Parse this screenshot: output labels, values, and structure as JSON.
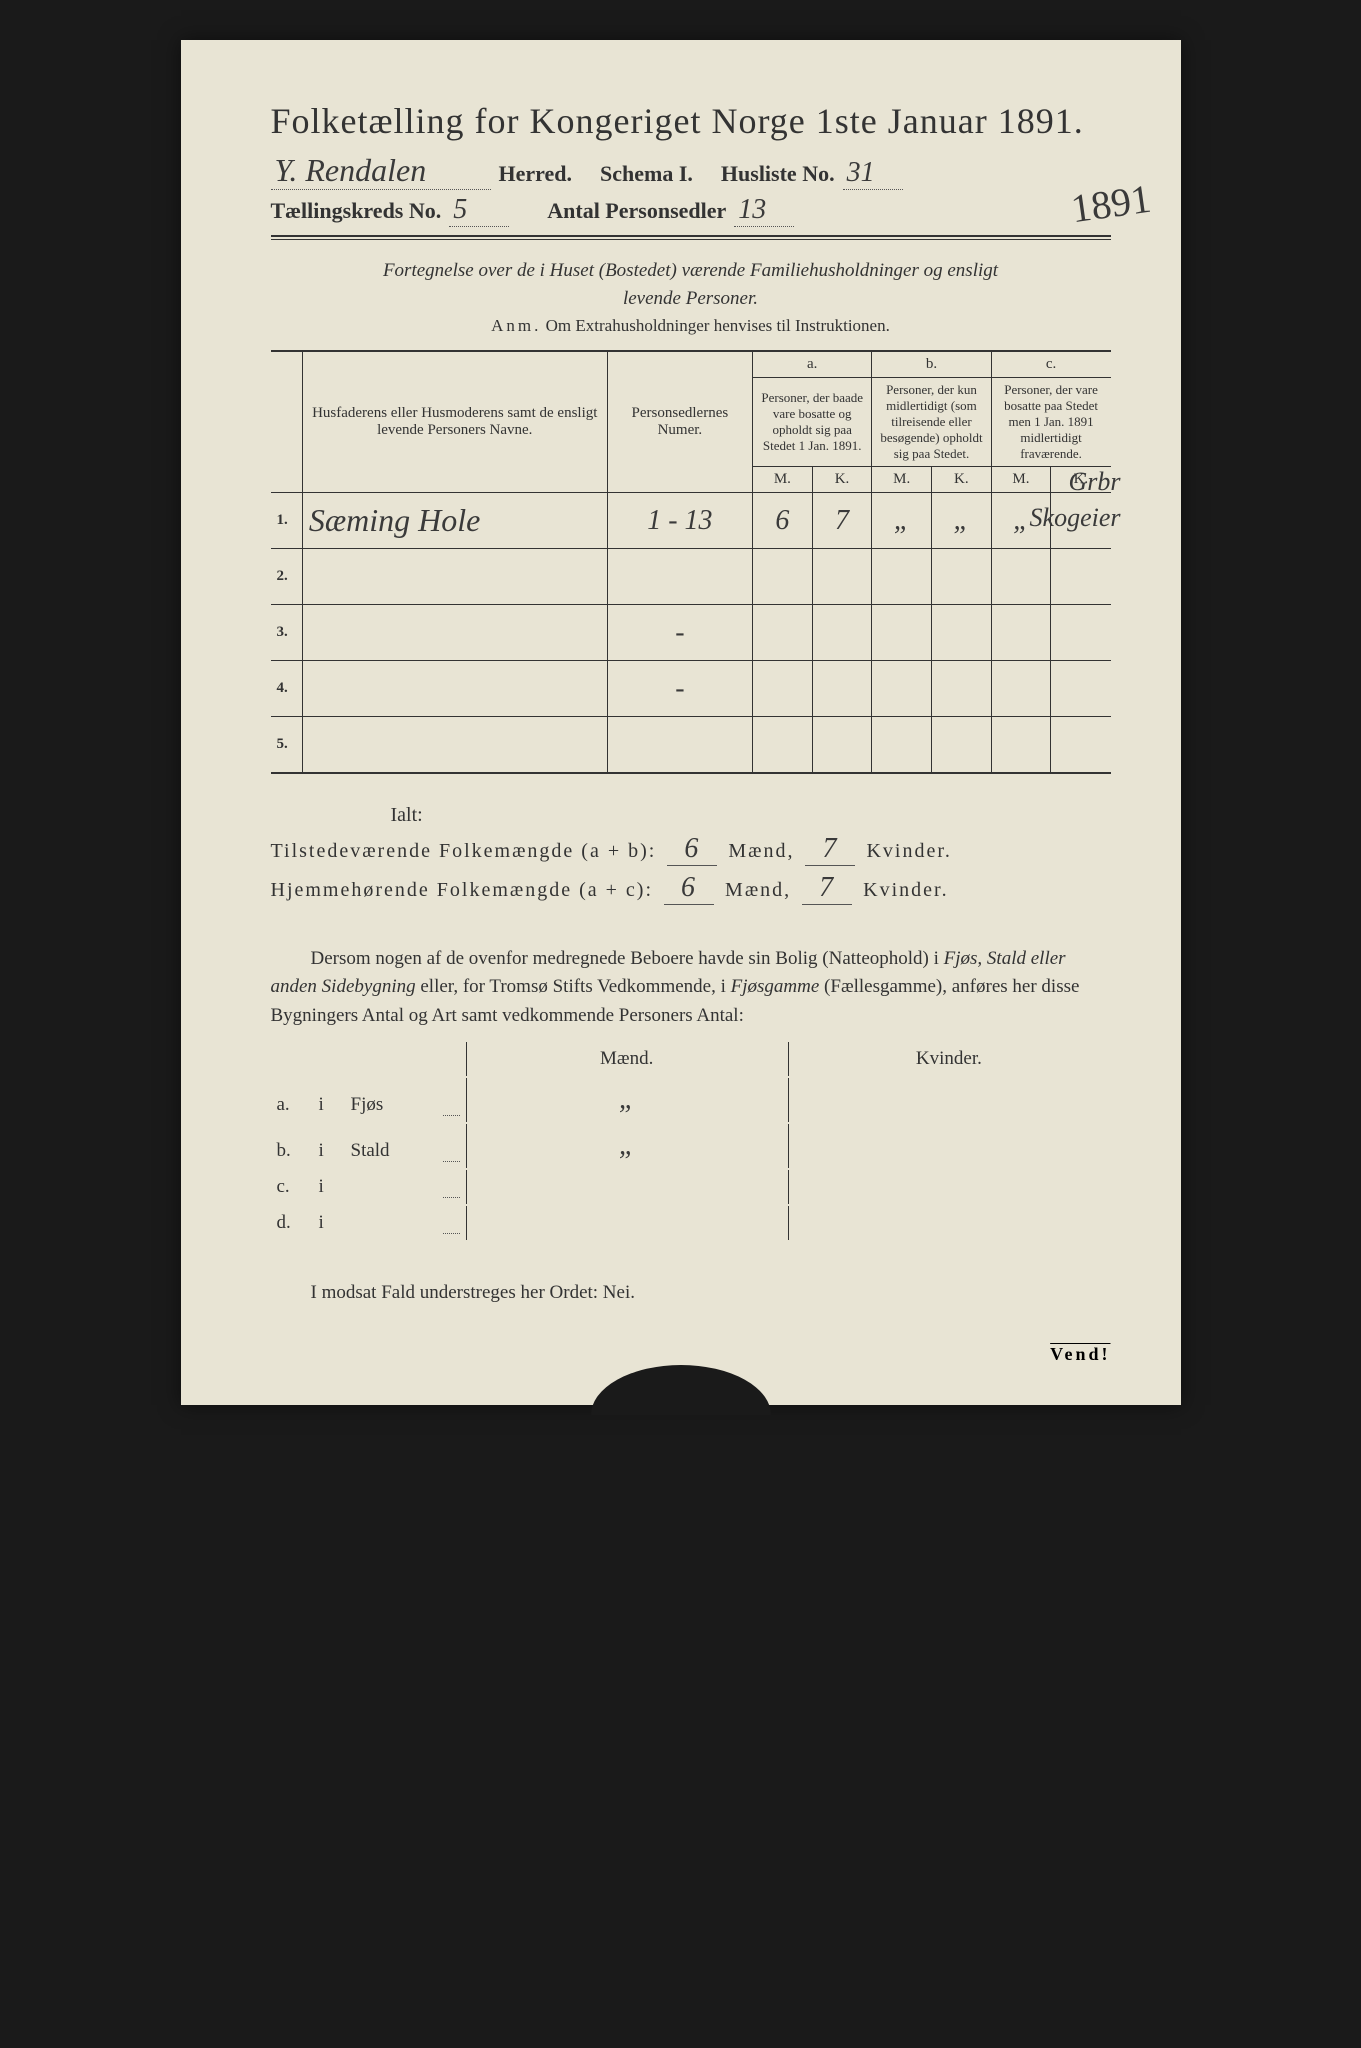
{
  "colors": {
    "paper": "#e8e4d4",
    "ink": "#333333",
    "handwriting": "#3a3a3a",
    "background": "#1a1a1a"
  },
  "header": {
    "title": "Folketælling for Kongeriget Norge 1ste Januar 1891.",
    "herred_hw": "Y. Rendalen",
    "herred_label": "Herred.",
    "schema": "Schema I.",
    "husliste_label": "Husliste No.",
    "husliste_hw": "31",
    "side_year": "1891",
    "kreds_label": "Tællingskreds No.",
    "kreds_hw": "5",
    "antal_label": "Antal Personsedler",
    "antal_hw": "13"
  },
  "subtitle1": "Fortegnelse over de i Huset (Bostedet) værende Familiehusholdninger og ensligt",
  "subtitle2": "levende Personer.",
  "anm_label": "Anm.",
  "anm_text": "Om Extrahusholdninger henvises til Instruktionen.",
  "table": {
    "col_names": "Husfaderens eller Husmoderens samt de ensligt levende Personers Navne.",
    "col_numer": "Personsedlernes Numer.",
    "col_a_label": "a.",
    "col_a_text": "Personer, der baade vare bosatte og opholdt sig paa Stedet 1 Jan. 1891.",
    "col_b_label": "b.",
    "col_b_text": "Personer, der kun midlertidigt (som tilreisende eller besøgende) opholdt sig paa Stedet.",
    "col_c_label": "c.",
    "col_c_text": "Personer, der vare bosatte paa Stedet men 1 Jan. 1891 midlertidigt fraværende.",
    "mk_m": "M.",
    "mk_k": "K.",
    "margin_top": "Grbr",
    "rows": [
      {
        "num": "1.",
        "name": "Sæming Hole",
        "numer": "1 - 13",
        "a_m": "6",
        "a_k": "7",
        "b_m": "„",
        "b_k": "„",
        "c_m": "„",
        "c_k": "",
        "margin": "Skogeier"
      },
      {
        "num": "2.",
        "name": "",
        "numer": "",
        "a_m": "",
        "a_k": "",
        "b_m": "",
        "b_k": "",
        "c_m": "",
        "c_k": "",
        "margin": ""
      },
      {
        "num": "3.",
        "name": "",
        "numer": "-",
        "a_m": "",
        "a_k": "",
        "b_m": "",
        "b_k": "",
        "c_m": "",
        "c_k": "",
        "margin": ""
      },
      {
        "num": "4.",
        "name": "",
        "numer": "-",
        "a_m": "",
        "a_k": "",
        "b_m": "",
        "b_k": "",
        "c_m": "",
        "c_k": "",
        "margin": ""
      },
      {
        "num": "5.",
        "name": "",
        "numer": "",
        "a_m": "",
        "a_k": "",
        "b_m": "",
        "b_k": "",
        "c_m": "",
        "c_k": "",
        "margin": ""
      }
    ]
  },
  "ialt": {
    "label": "Ialt:",
    "present_label": "Tilstedeværende Folkemængde (a + b):",
    "resident_label": "Hjemmehørende Folkemængde (a + c):",
    "maend": "Mænd,",
    "kvinder": "Kvinder.",
    "pres_m": "6",
    "pres_k": "7",
    "res_m": "6",
    "res_k": "7"
  },
  "para_text": "Dersom nogen af de ovenfor medregnede Beboere havde sin Bolig (Natteophold) i Fjøs, Stald eller anden Sidebygning eller, for Tromsø Stifts Vedkommende, i Fjøsgamme (Fællesgamme), anføres her disse Bygningers Antal og Art samt vedkommende Personers Antal:",
  "dwelling": {
    "head_m": "Mænd.",
    "head_k": "Kvinder.",
    "rows": [
      {
        "label_a": "a.",
        "label_i": "i",
        "type": "Fjøs",
        "m": "„",
        "k": ""
      },
      {
        "label_a": "b.",
        "label_i": "i",
        "type": "Stald",
        "m": "„",
        "k": ""
      },
      {
        "label_a": "c.",
        "label_i": "i",
        "type": "",
        "m": "",
        "k": ""
      },
      {
        "label_a": "d.",
        "label_i": "i",
        "type": "",
        "m": "",
        "k": ""
      }
    ]
  },
  "nei_line": "I modsat Fald understreges her Ordet: Nei.",
  "vend": "Vend!"
}
